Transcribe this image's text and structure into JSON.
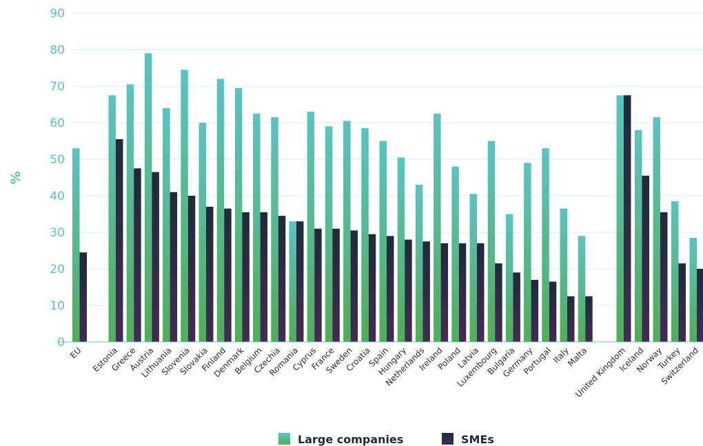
{
  "chart_data": {
    "type": "bar",
    "title": "",
    "xlabel": "",
    "ylabel": "%",
    "ylim": [
      0,
      90
    ],
    "yticks": [
      0,
      10,
      20,
      30,
      40,
      50,
      60,
      70,
      80,
      90
    ],
    "grid": true,
    "legend_position": "bottom-center",
    "categories": [
      "EU",
      "Estonia",
      "Greece",
      "Austria",
      "Lithuania",
      "Slovenia",
      "Slovakia",
      "Finland",
      "Denmark",
      "Belgium",
      "Czechia",
      "Romania",
      "Cyprus",
      "France",
      "Sweden",
      "Croatia",
      "Spain",
      "Hungary",
      "Netherlands",
      "Ireland",
      "Poland",
      "Latvia",
      "Luxembourg",
      "Bulgaria",
      "Germany",
      "Portugal",
      "Italy",
      "Malta",
      "United Kingdom",
      "Iceland",
      "Norway",
      "Turkey",
      "Switzerland"
    ],
    "series": [
      {
        "name": "Large companies",
        "colors": [
          "#5bc3c3",
          "#4fae56"
        ],
        "values": [
          53,
          67.5,
          70.5,
          79,
          64,
          74.5,
          60,
          72,
          69.5,
          62.5,
          61.5,
          33,
          63,
          59,
          60.5,
          58.5,
          55,
          50.5,
          43,
          62.5,
          48,
          40.5,
          55,
          35,
          49,
          53,
          36.5,
          29,
          67.5,
          58,
          61.5,
          38.5,
          28.5
        ]
      },
      {
        "name": "SMEs",
        "colors": [
          "#1e2b3a",
          "#452a55"
        ],
        "values": [
          24.5,
          55.5,
          47.5,
          46.5,
          41,
          40,
          37,
          36.5,
          35.5,
          35.5,
          34.5,
          33,
          31,
          31,
          30.5,
          29.5,
          29,
          28,
          27.5,
          27,
          27,
          27,
          21.5,
          19,
          17,
          16.5,
          12.5,
          12.5,
          67.5,
          45.5,
          35.5,
          21.5,
          20
        ]
      }
    ]
  }
}
